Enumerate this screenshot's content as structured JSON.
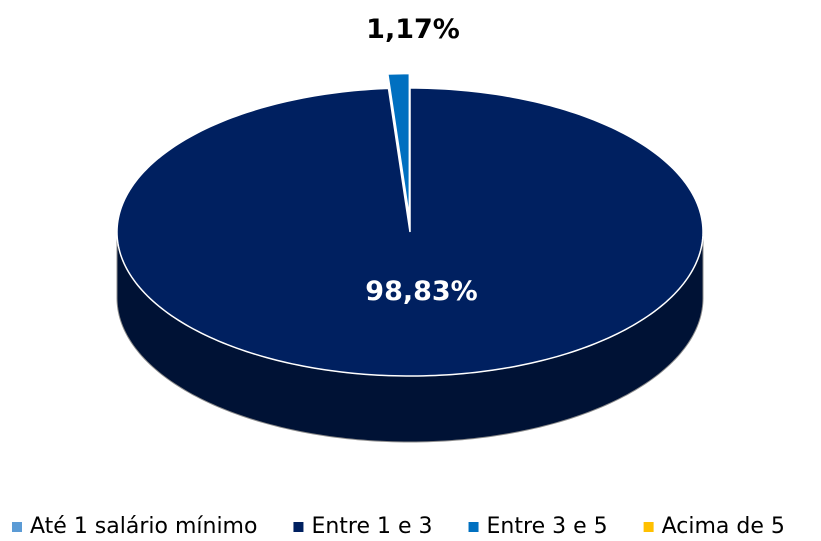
{
  "chart_data": {
    "type": "pie",
    "categories": [
      "Até 1 salário mínimo",
      "Entre 1 e 3",
      "Entre 3 e 5",
      "Acima de 5"
    ],
    "values": [
      0,
      98.83,
      1.17,
      0
    ],
    "value_labels": [
      null,
      "98,83%",
      "1,17%",
      null
    ],
    "colors": [
      "#5b9bd5",
      "#002060",
      "#0070c0",
      "#ffc000"
    ],
    "legend": "bottom"
  }
}
